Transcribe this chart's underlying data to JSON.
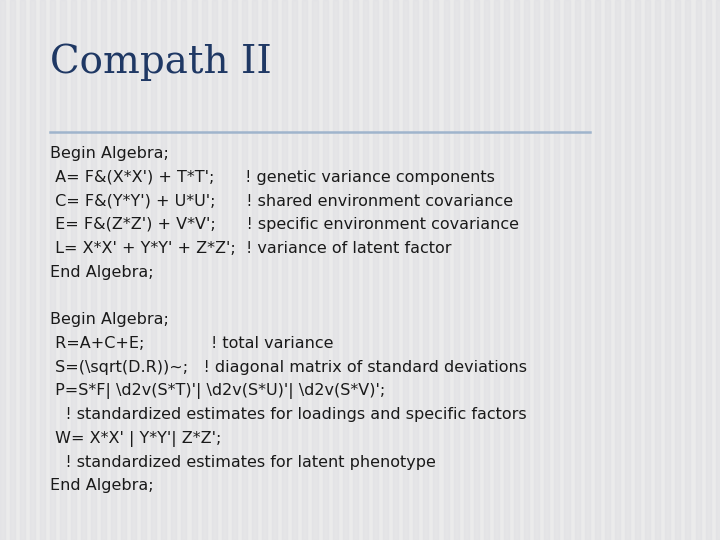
{
  "title": "Compath II",
  "title_color": "#1F3864",
  "title_fontsize": 28,
  "title_font": "DejaVu Serif",
  "background_color": "#EBEBEB",
  "line_color": "#9FB4CC",
  "body_lines": [
    "Begin Algebra;",
    " A= F&(X*X') + T*T';      ! genetic variance components",
    " C= F&(Y*Y') + U*U';      ! shared environment covariance",
    " E= F&(Z*Z') + V*V';      ! specific environment covariance",
    " L= X*X' + Y*Y' + Z*Z';  ! variance of latent factor",
    "End Algebra;",
    "",
    "Begin Algebra;",
    " R=A+C+E;             ! total variance",
    " S=(\\sqrt(D.R))~;   ! diagonal matrix of standard deviations",
    " P=S*F| \\d2v(S*T)'| \\d2v(S*U)'| \\d2v(S*V)';",
    "   ! standardized estimates for loadings and specific factors",
    " W= X*X' | Y*Y'| Z*Z';",
    "   ! standardized estimates for latent phenotype",
    "End Algebra;"
  ],
  "body_fontsize": 11.5,
  "body_color": "#1A1A1A",
  "body_font": "DejaVu Sans"
}
